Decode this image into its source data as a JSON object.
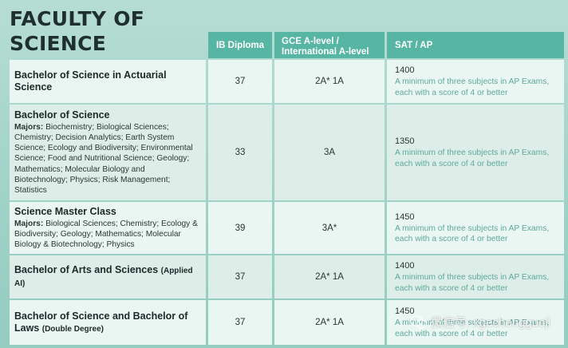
{
  "title_line1": "FACULTY OF",
  "title_line2": "SCIENCE",
  "headers": {
    "ib": "IB Diploma",
    "gce": "GCE A-level / International A-level",
    "sat": "SAT / AP"
  },
  "rows": [
    {
      "name": "Bachelor of Science in Actuarial Science",
      "suffix": "",
      "majors_label": "",
      "majors": "",
      "ib": "37",
      "gce": "2A* 1A",
      "sat_score": "1400",
      "sat_note": "A minimum of three subjects in AP Exams, each with a score of 4 or better"
    },
    {
      "name": "Bachelor of Science",
      "suffix": "",
      "majors_label": "Majors:",
      "majors": "Biochemistry; Biological Sciences; Chemistry; Decision Analytics; Earth System Science; Ecology and Biodiversity; Environmental Science; Food and Nutritional Science; Geology; Mathematics; Molecular Biology and Biotechnology; Physics; Risk Management; Statistics",
      "ib": "33",
      "gce": "3A",
      "sat_score": "1350",
      "sat_note": "A minimum of three subjects in AP Exams, each with a score of 4 or better"
    },
    {
      "name": "Science Master Class",
      "suffix": "",
      "majors_label": "Majors:",
      "majors": "Biological Sciences; Chemistry; Ecology & Biodiversity; Geology; Mathematics; Molecular Biology & Biotechnology; Physics",
      "ib": "39",
      "gce": "3A*",
      "sat_score": "1450",
      "sat_note": "A minimum of three subjects in AP Exams, each with a score of 4 or better"
    },
    {
      "name": "Bachelor of Arts and Sciences",
      "suffix": "(Applied AI)",
      "majors_label": "",
      "majors": "",
      "ib": "37",
      "gce": "2A* 1A",
      "sat_score": "1400",
      "sat_note": "A minimum of three subjects in AP Exams, each with a score of 4 or better"
    },
    {
      "name": "Bachelor of Science and Bachelor of Laws",
      "suffix": "(Double Degree)",
      "majors_label": "",
      "majors": "",
      "ib": "37",
      "gce": "2A* 1A",
      "sat_score": "1450",
      "sat_note": "A minimum of three subjects in AP Exams, each with a score of 4 or better"
    }
  ],
  "watermark": "微信号: xgechengguoji",
  "colors": {
    "header": "#56b6a3",
    "row_light": "#eaf6f2",
    "row_alt": "#ddeee9",
    "note": "#5fa89a",
    "background": "#a8d7cb"
  }
}
